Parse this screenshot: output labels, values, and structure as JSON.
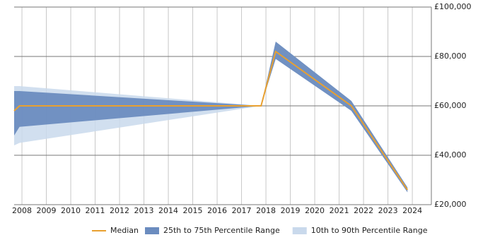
{
  "chart_data": {
    "type": "band-line",
    "x": [
      2007.68,
      2007.9,
      2017.8,
      2018.4,
      2021.5,
      2023.8
    ],
    "xlim": [
      2007.68,
      2024.78
    ],
    "xticks": [
      2008,
      2009,
      2010,
      2011,
      2012,
      2013,
      2014,
      2015,
      2016,
      2017,
      2018,
      2019,
      2020,
      2021,
      2022,
      2023,
      2024
    ],
    "ylim": [
      20000,
      100000
    ],
    "yticks": [
      {
        "value": 20000,
        "label": "£20,000"
      },
      {
        "value": 40000,
        "label": "£40,000"
      },
      {
        "value": 60000,
        "label": "£60,000"
      },
      {
        "value": 80000,
        "label": "£80,000"
      },
      {
        "value": 100000,
        "label": "£100,000"
      }
    ],
    "grid": true,
    "bands": [
      {
        "name": "10th to 90th Percentile Range",
        "color": "#c9d9ec",
        "lower": [
          44000,
          45000,
          60000,
          79000,
          58000,
          25000
        ],
        "upper": [
          68000,
          68000,
          60000,
          86000,
          62000,
          27000
        ]
      },
      {
        "name": "25th to 75th Percentile Range",
        "color": "#6b8cbf",
        "lower": [
          48000,
          51500,
          60000,
          79000,
          58000,
          25000
        ],
        "upper": [
          66000,
          66000,
          60000,
          86000,
          62000,
          27000
        ]
      }
    ],
    "series": [
      {
        "name": "Median",
        "color": "#e8a030",
        "values": [
          58000,
          60000,
          60000,
          82000,
          60000,
          26000
        ]
      }
    ]
  }
}
